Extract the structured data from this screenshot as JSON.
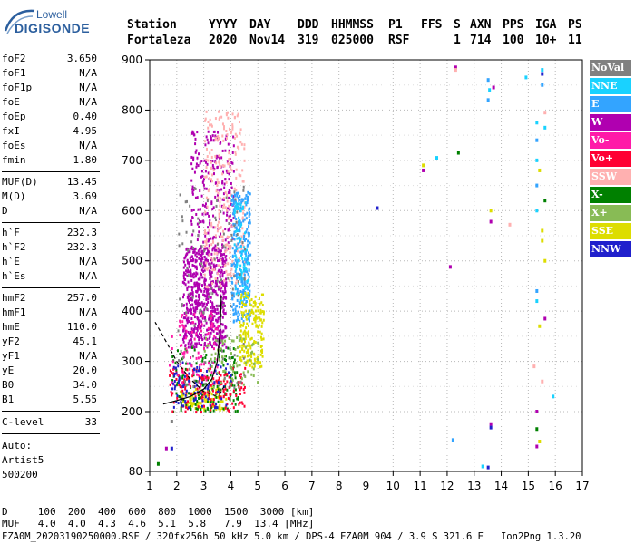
{
  "logo": {
    "line1": "Lowell",
    "line2": "DIGISONDE"
  },
  "header": {
    "row1": [
      "Station",
      "YYYY",
      "DAY",
      "DDD",
      "HHMMSS",
      "P1",
      "FFS",
      "S",
      "AXN",
      "PPS",
      "IGA",
      "PS"
    ],
    "row2": [
      "Fortaleza",
      "2020",
      "Nov14",
      "319",
      "025000",
      "RSF",
      "1",
      "714",
      "100",
      "10+",
      "11"
    ]
  },
  "params": [
    {
      "label": "foF2",
      "value": "3.650"
    },
    {
      "label": "foF1",
      "value": "N/A"
    },
    {
      "label": "foF1p",
      "value": "N/A"
    },
    {
      "label": "foE",
      "value": "N/A"
    },
    {
      "label": "foEp",
      "value": "0.40"
    },
    {
      "label": "fxI",
      "value": "4.95"
    },
    {
      "label": "foEs",
      "value": "N/A"
    },
    {
      "label": "fmin",
      "value": "1.80"
    },
    {
      "label": "MUF(D)",
      "value": "13.45"
    },
    {
      "label": "M(D)",
      "value": "3.69"
    },
    {
      "label": "D",
      "value": "N/A"
    },
    {
      "label": "h`F",
      "value": "232.3"
    },
    {
      "label": "h`F2",
      "value": "232.3"
    },
    {
      "label": "h`E",
      "value": "N/A"
    },
    {
      "label": "h`Es",
      "value": "N/A"
    },
    {
      "label": "hmF2",
      "value": "257.0"
    },
    {
      "label": "hmF1",
      "value": "N/A"
    },
    {
      "label": "hmE",
      "value": "110.0"
    },
    {
      "label": "yF2",
      "value": "45.1"
    },
    {
      "label": "yF1",
      "value": "N/A"
    },
    {
      "label": "yE",
      "value": "20.0"
    },
    {
      "label": "B0",
      "value": "34.0"
    },
    {
      "label": "B1",
      "value": "5.55"
    },
    {
      "label": "C-level",
      "value": "33"
    }
  ],
  "scaler": {
    "line1": "Auto:",
    "line2": "Artist5",
    "line3": "500200"
  },
  "legend": [
    {
      "label": "NoVal",
      "color": "#808080"
    },
    {
      "label": "NNE",
      "color": "#19d2ff"
    },
    {
      "label": "E",
      "color": "#33a4ff"
    },
    {
      "label": "W",
      "color": "#b000b0"
    },
    {
      "label": "Vo-",
      "color": "#ff1aa8"
    },
    {
      "label": "Vo+",
      "color": "#ff0033"
    },
    {
      "label": "SSW",
      "color": "#ffb0b0"
    },
    {
      "label": "X-",
      "color": "#008000"
    },
    {
      "label": "X+",
      "color": "#88bb55"
    },
    {
      "label": "SSE",
      "color": "#dddd00"
    },
    {
      "label": "NNW",
      "color": "#2020cc"
    }
  ],
  "footer": {
    "d_row": "D     100  200  400  600  800  1000  1500  3000 [km]",
    "muf_row": "MUF   4.0  4.0  4.3  4.6  5.1  5.8   7.9  13.4 [MHz]",
    "file_row": "FZA0M_20203190250000.RSF / 320fx256h 50 kHz 5.0 km / DPS-4 FZA0M 904 / 3.9 S 321.6 E   Ion2Png 1.3.20"
  },
  "chart_data": {
    "type": "scatter",
    "xlim": [
      1,
      17
    ],
    "ylim": [
      80,
      900
    ],
    "xticks": [
      "1",
      "2",
      "3",
      "4",
      "5",
      "6",
      "7",
      "8",
      "9",
      "10",
      "11",
      "12",
      "13",
      "14",
      "15",
      "16",
      "17"
    ],
    "yticks": [
      "80",
      "200",
      "300",
      "400",
      "500",
      "600",
      "700",
      "800",
      "900"
    ],
    "grid": true,
    "clusters": [
      {
        "series": "W",
        "x": [
          2.2,
          3.8
        ],
        "y": [
          330,
          530
        ],
        "n": 600
      },
      {
        "series": "W",
        "x": [
          2.5,
          4.1
        ],
        "y": [
          520,
          760
        ],
        "n": 220
      },
      {
        "series": "SSW",
        "x": [
          3.0,
          4.5
        ],
        "y": [
          450,
          800
        ],
        "n": 260
      },
      {
        "series": "E",
        "x": [
          4.0,
          4.7
        ],
        "y": [
          380,
          640
        ],
        "n": 260
      },
      {
        "series": "NNE",
        "x": [
          4.1,
          4.6
        ],
        "y": [
          420,
          620
        ],
        "n": 80
      },
      {
        "series": "SSE",
        "x": [
          4.3,
          5.2
        ],
        "y": [
          290,
          440
        ],
        "n": 180
      },
      {
        "series": "SSE",
        "x": [
          2.1,
          3.8
        ],
        "y": [
          205,
          250
        ],
        "n": 120
      },
      {
        "series": "X-",
        "x": [
          1.8,
          4.3
        ],
        "y": [
          200,
          330
        ],
        "n": 160
      },
      {
        "series": "Vo+",
        "x": [
          1.7,
          4.5
        ],
        "y": [
          200,
          290
        ],
        "n": 160
      },
      {
        "series": "Vo-",
        "x": [
          1.7,
          3.5
        ],
        "y": [
          250,
          400
        ],
        "n": 100
      },
      {
        "series": "NNW",
        "x": [
          1.8,
          4.0
        ],
        "y": [
          210,
          300
        ],
        "n": 90
      },
      {
        "series": "X+",
        "x": [
          3.0,
          5.0
        ],
        "y": [
          250,
          350
        ],
        "n": 80
      },
      {
        "series": "NoVal",
        "x": [
          2.0,
          4.5
        ],
        "y": [
          250,
          650
        ],
        "n": 120
      }
    ],
    "points": [
      {
        "series": "W",
        "x": 12.3,
        "y": 885
      },
      {
        "series": "SSW",
        "x": 12.3,
        "y": 880
      },
      {
        "series": "E",
        "x": 13.5,
        "y": 860
      },
      {
        "series": "NNE",
        "x": 13.55,
        "y": 840
      },
      {
        "series": "E",
        "x": 13.5,
        "y": 820
      },
      {
        "series": "W",
        "x": 13.7,
        "y": 845
      },
      {
        "series": "NNE",
        "x": 14.9,
        "y": 865
      },
      {
        "series": "NNE",
        "x": 15.3,
        "y": 775
      },
      {
        "series": "E",
        "x": 15.3,
        "y": 740
      },
      {
        "series": "NNE",
        "x": 15.3,
        "y": 700
      },
      {
        "series": "SSE",
        "x": 15.4,
        "y": 680
      },
      {
        "series": "E",
        "x": 15.3,
        "y": 650
      },
      {
        "series": "NNE",
        "x": 15.3,
        "y": 600
      },
      {
        "series": "SSE",
        "x": 15.5,
        "y": 560
      },
      {
        "series": "SSE",
        "x": 15.5,
        "y": 540
      },
      {
        "series": "E",
        "x": 15.3,
        "y": 440
      },
      {
        "series": "NNE",
        "x": 15.3,
        "y": 420
      },
      {
        "series": "SSW",
        "x": 15.2,
        "y": 290
      },
      {
        "series": "SSE",
        "x": 15.4,
        "y": 370
      },
      {
        "series": "W",
        "x": 15.3,
        "y": 200
      },
      {
        "series": "X-",
        "x": 15.3,
        "y": 165
      },
      {
        "series": "W",
        "x": 15.3,
        "y": 130
      },
      {
        "series": "SSE",
        "x": 15.4,
        "y": 140
      },
      {
        "series": "NNE",
        "x": 15.9,
        "y": 230
      },
      {
        "series": "NNE",
        "x": 15.5,
        "y": 880
      },
      {
        "series": "NNW",
        "x": 15.5,
        "y": 872
      },
      {
        "series": "E",
        "x": 15.5,
        "y": 850
      },
      {
        "series": "SSW",
        "x": 15.6,
        "y": 795
      },
      {
        "series": "NNE",
        "x": 15.6,
        "y": 765
      },
      {
        "series": "X-",
        "x": 15.6,
        "y": 620
      },
      {
        "series": "SSE",
        "x": 15.6,
        "y": 500
      },
      {
        "series": "W",
        "x": 15.6,
        "y": 385
      },
      {
        "series": "SSW",
        "x": 15.5,
        "y": 260
      },
      {
        "series": "W",
        "x": 11.1,
        "y": 680
      },
      {
        "series": "SSE",
        "x": 11.1,
        "y": 690
      },
      {
        "series": "NNE",
        "x": 11.6,
        "y": 705
      },
      {
        "series": "X-",
        "x": 12.4,
        "y": 715
      },
      {
        "series": "NNW",
        "x": 9.4,
        "y": 605
      },
      {
        "series": "W",
        "x": 12.1,
        "y": 488
      },
      {
        "series": "SSE",
        "x": 13.6,
        "y": 600
      },
      {
        "series": "W",
        "x": 13.6,
        "y": 578
      },
      {
        "series": "SSW",
        "x": 14.3,
        "y": 572
      },
      {
        "series": "W",
        "x": 13.6,
        "y": 175
      },
      {
        "series": "NNW",
        "x": 13.6,
        "y": 168
      },
      {
        "series": "E",
        "x": 12.2,
        "y": 143
      },
      {
        "series": "NNE",
        "x": 13.3,
        "y": 90
      },
      {
        "series": "NNW",
        "x": 13.5,
        "y": 88
      },
      {
        "series": "W",
        "x": 1.6,
        "y": 126
      },
      {
        "series": "NNW",
        "x": 1.8,
        "y": 126
      },
      {
        "series": "X-",
        "x": 1.3,
        "y": 95
      },
      {
        "series": "NoVal",
        "x": 1.8,
        "y": 180
      }
    ],
    "curves": [
      {
        "name": "trace-ordinary",
        "style": "solid",
        "color": "#000000",
        "x": [
          1.5,
          2.0,
          2.5,
          3.0,
          3.3,
          3.5,
          3.6,
          3.65
        ],
        "y": [
          215,
          222,
          230,
          245,
          265,
          300,
          360,
          430
        ]
      },
      {
        "name": "trace-dashed",
        "style": "dashed",
        "color": "#000000",
        "x": [
          1.2,
          1.6,
          2.0,
          2.5,
          3.0,
          3.4,
          3.6,
          3.75
        ],
        "y": [
          378,
          340,
          300,
          265,
          240,
          232,
          235,
          250
        ]
      }
    ]
  }
}
